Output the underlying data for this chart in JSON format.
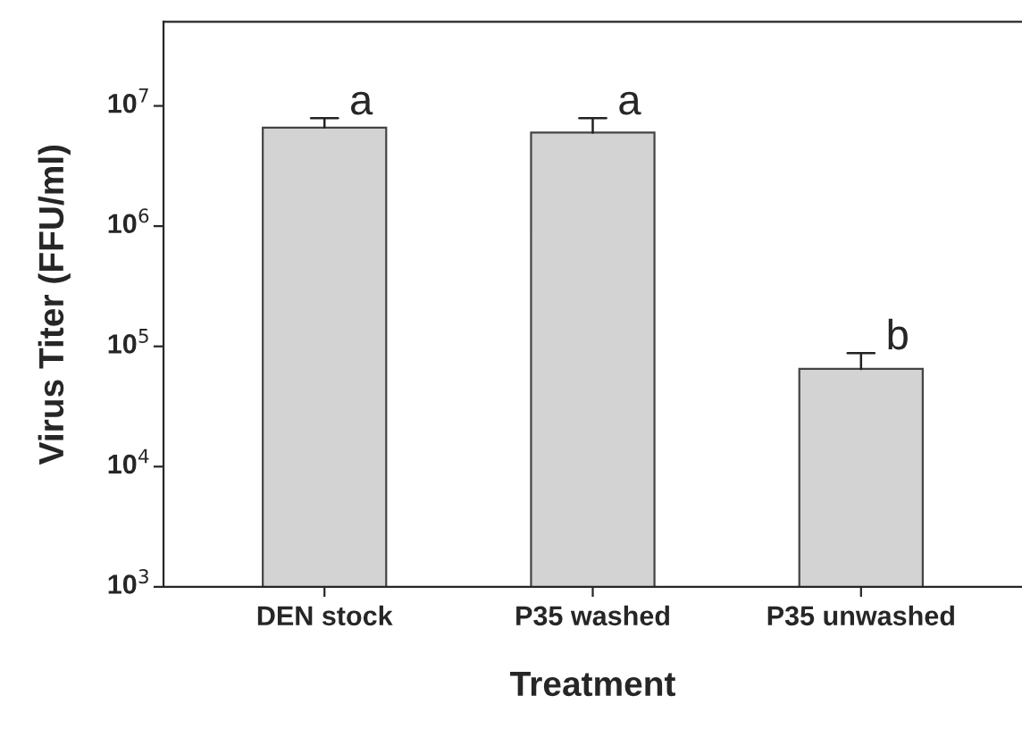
{
  "chart_data": {
    "type": "bar",
    "xlabel": "Treatment",
    "ylabel": "Virus Titer (FFU/ml)",
    "categories": [
      "DEN stock",
      "P35 washed",
      "P35 unwashed"
    ],
    "values": [
      6600000,
      6000000,
      65000
    ],
    "color": "#d3d3d3",
    "errors": [
      [
        6600000,
        7900000
      ],
      [
        6000000,
        7900000
      ],
      [
        65000,
        88000
      ]
    ],
    "log": "y",
    "ylim": [
      1000,
      50000000
    ],
    "yticks": [
      {
        "value": 1000,
        "label": "10$^{3}$"
      },
      {
        "value": 10000,
        "label": "10$^{4}$"
      },
      {
        "value": 100000,
        "label": "10$^{5}$"
      },
      {
        "value": 1000000,
        "label": "10$^{6}$"
      },
      {
        "value": 10000000,
        "label": "10$^{7}$"
      }
    ],
    "annotations": [
      {
        "text": "a",
        "x": "DEN stock",
        "y": 7900000
      },
      {
        "text": "a",
        "x": "P35 washed",
        "y": 7900000
      },
      {
        "text": "b",
        "x": "P35 unwashed",
        "y": 88000
      }
    ],
    "grid": false,
    "legend": false
  }
}
